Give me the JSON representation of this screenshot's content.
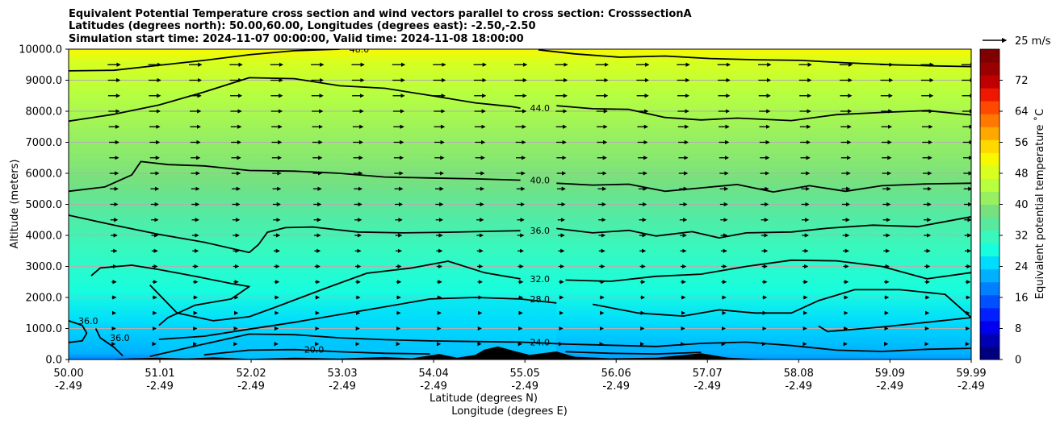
{
  "chart_data": {
    "type": "heatmap",
    "title_lines": [
      "Equivalent Potential Temperature cross section and wind vectors parallel to cross section: CrosssectionA",
      "Latitudes (degrees north): 50.00,60.00, Longitudes (degrees east): -2.50,-2.50",
      "Simulation start time: 2024-11-07 00:00:00, Valid time: 2024-11-08 18:00:00"
    ],
    "xlabel_lines": [
      "Latitude (degrees N)",
      "Longitude (degrees E)"
    ],
    "ylabel": "Altitude (meters)",
    "xlim": [
      50.0,
      59.99
    ],
    "ylim": [
      0,
      10000
    ],
    "x_ticks": [
      {
        "lat": "50.00",
        "lon": "-2.49",
        "v": 50.0
      },
      {
        "lat": "51.01",
        "lon": "-2.49",
        "v": 51.01
      },
      {
        "lat": "52.02",
        "lon": "-2.49",
        "v": 52.02
      },
      {
        "lat": "53.03",
        "lon": "-2.49",
        "v": 53.03
      },
      {
        "lat": "54.04",
        "lon": "-2.49",
        "v": 54.04
      },
      {
        "lat": "55.05",
        "lon": "-2.49",
        "v": 55.05
      },
      {
        "lat": "56.06",
        "lon": "-2.49",
        "v": 56.06
      },
      {
        "lat": "57.07",
        "lon": "-2.49",
        "v": 57.07
      },
      {
        "lat": "58.08",
        "lon": "-2.49",
        "v": 58.08
      },
      {
        "lat": "59.09",
        "lon": "-2.49",
        "v": 59.09
      },
      {
        "lat": "59.99",
        "lon": "-2.49",
        "v": 59.99
      }
    ],
    "y_ticks": [
      {
        "label": "0.0",
        "v": 0
      },
      {
        "label": "1000.0",
        "v": 1000
      },
      {
        "label": "2000.0",
        "v": 2000
      },
      {
        "label": "3000.0",
        "v": 3000
      },
      {
        "label": "4000.0",
        "v": 4000
      },
      {
        "label": "5000.0",
        "v": 5000
      },
      {
        "label": "6000.0",
        "v": 6000
      },
      {
        "label": "7000.0",
        "v": 7000
      },
      {
        "label": "8000.0",
        "v": 8000
      },
      {
        "label": "9000.0",
        "v": 9000
      },
      {
        "label": "10000.0",
        "v": 10000
      }
    ],
    "grid": true,
    "colorbar": {
      "label": "Equivalent potential temperature ˚C",
      "range": [
        0,
        80
      ],
      "ticks": [
        "0",
        "8",
        "16",
        "24",
        "32",
        "40",
        "48",
        "56",
        "64",
        "72"
      ],
      "tick_values": [
        0,
        8,
        16,
        24,
        32,
        40,
        48,
        56,
        64,
        72
      ],
      "colors": [
        "#00007f",
        "#0000b2",
        "#0000ee",
        "#0020ff",
        "#0050ff",
        "#0080ff",
        "#00b0ff",
        "#00dcfd",
        "#18fdde",
        "#38f8be",
        "#58e89e",
        "#78e07e",
        "#98f060",
        "#b8ff3f",
        "#d8ff1f",
        "#f8f800",
        "#ffd800",
        "#ffa800",
        "#ff7800",
        "#ff4800",
        "#ee1800",
        "#c00000",
        "#9a0000",
        "#7f0000"
      ]
    },
    "quiver_key": {
      "label": "25 m/s",
      "speed": 25
    },
    "contours": [
      {
        "level": 48.0,
        "label": "48.0",
        "label_near_lat": 55.05,
        "points": [
          [
            50.0,
            9300
          ],
          [
            50.5,
            9320
          ],
          [
            51.0,
            9480
          ],
          [
            51.5,
            9640
          ],
          [
            52.0,
            9820
          ],
          [
            52.5,
            9950
          ],
          [
            53.0,
            10000
          ]
        ]
      },
      {
        "level": 48.0,
        "label": "48.0",
        "points": [
          [
            55.2,
            9980
          ],
          [
            55.6,
            9850
          ],
          [
            56.1,
            9740
          ],
          [
            56.6,
            9780
          ],
          [
            57.1,
            9700
          ],
          [
            57.6,
            9660
          ],
          [
            58.1,
            9640
          ],
          [
            58.6,
            9560
          ],
          [
            59.1,
            9500
          ],
          [
            59.6,
            9460
          ],
          [
            59.99,
            9440
          ]
        ]
      },
      {
        "level": 44.0,
        "label": "44.0",
        "label_near_lat": 55.05,
        "points": [
          [
            50.0,
            7680
          ],
          [
            50.5,
            7900
          ],
          [
            51.0,
            8200
          ],
          [
            51.5,
            8620
          ],
          [
            52.0,
            9080
          ],
          [
            52.5,
            9050
          ],
          [
            53.0,
            8820
          ],
          [
            53.5,
            8740
          ],
          [
            54.0,
            8510
          ],
          [
            54.5,
            8270
          ],
          [
            54.9,
            8150
          ],
          [
            55.0,
            8100
          ]
        ]
      },
      {
        "level": 44.0,
        "label": "44.0",
        "points": [
          [
            55.4,
            8180
          ],
          [
            55.8,
            8080
          ],
          [
            56.2,
            8060
          ],
          [
            56.6,
            7800
          ],
          [
            57.0,
            7720
          ],
          [
            57.4,
            7780
          ],
          [
            58.0,
            7700
          ],
          [
            58.5,
            7890
          ],
          [
            59.0,
            7960
          ],
          [
            59.5,
            8020
          ],
          [
            59.99,
            7880
          ]
        ]
      },
      {
        "level": 40.0,
        "label": "40.0",
        "label_near_lat": 55.05,
        "points": [
          [
            50.0,
            5420
          ],
          [
            50.4,
            5560
          ],
          [
            50.7,
            5950
          ],
          [
            50.8,
            6380
          ],
          [
            51.1,
            6280
          ],
          [
            51.5,
            6240
          ],
          [
            52.0,
            6090
          ],
          [
            52.5,
            6070
          ],
          [
            53.0,
            6000
          ],
          [
            53.5,
            5880
          ],
          [
            54.0,
            5850
          ],
          [
            54.5,
            5820
          ],
          [
            55.0,
            5780
          ]
        ]
      },
      {
        "level": 40.0,
        "label": "40.0",
        "points": [
          [
            55.4,
            5680
          ],
          [
            55.8,
            5620
          ],
          [
            56.2,
            5650
          ],
          [
            56.6,
            5420
          ],
          [
            57.0,
            5530
          ],
          [
            57.4,
            5640
          ],
          [
            57.8,
            5400
          ],
          [
            58.2,
            5600
          ],
          [
            58.6,
            5420
          ],
          [
            59.0,
            5600
          ],
          [
            59.5,
            5660
          ],
          [
            59.99,
            5680
          ]
        ]
      },
      {
        "level": 36.0,
        "label": "36.0",
        "label_near_lat": 55.05,
        "points": [
          [
            50.0,
            4650
          ],
          [
            50.5,
            4330
          ],
          [
            51.0,
            4030
          ],
          [
            51.5,
            3780
          ],
          [
            52.0,
            3450
          ],
          [
            52.1,
            3700
          ],
          [
            52.2,
            4100
          ],
          [
            52.4,
            4250
          ],
          [
            52.7,
            4270
          ],
          [
            53.2,
            4110
          ],
          [
            53.7,
            4080
          ],
          [
            54.2,
            4100
          ],
          [
            54.8,
            4140
          ],
          [
            55.0,
            4150
          ]
        ]
      },
      {
        "level": 36.0,
        "label": "36.0",
        "points": [
          [
            55.4,
            4220
          ],
          [
            55.8,
            4080
          ],
          [
            56.2,
            4160
          ],
          [
            56.5,
            3980
          ],
          [
            56.9,
            4120
          ],
          [
            57.2,
            3920
          ],
          [
            57.5,
            4080
          ],
          [
            58.0,
            4110
          ],
          [
            58.4,
            4230
          ],
          [
            58.9,
            4330
          ],
          [
            59.4,
            4280
          ],
          [
            59.99,
            4600
          ]
        ]
      },
      {
        "level": 32.0,
        "label": "32.0",
        "label_near_lat": 55.05,
        "points": [
          [
            50.9,
            2400
          ],
          [
            51.2,
            1500
          ],
          [
            51.6,
            1250
          ],
          [
            52.0,
            1380
          ],
          [
            52.3,
            1700
          ],
          [
            52.8,
            2250
          ],
          [
            53.3,
            2780
          ],
          [
            53.8,
            2950
          ],
          [
            54.2,
            3170
          ],
          [
            54.6,
            2800
          ],
          [
            55.0,
            2600
          ]
        ]
      },
      {
        "level": 32.0,
        "label": "32.0",
        "points": [
          [
            55.5,
            2560
          ],
          [
            56.0,
            2520
          ],
          [
            56.5,
            2680
          ],
          [
            57.0,
            2750
          ],
          [
            57.5,
            3000
          ],
          [
            58.0,
            3200
          ],
          [
            58.5,
            3180
          ],
          [
            59.0,
            3000
          ],
          [
            59.5,
            2600
          ],
          [
            59.99,
            2800
          ]
        ]
      },
      {
        "level": 32.0,
        "label": "32.0",
        "points": [
          [
            50.25,
            2700
          ],
          [
            50.35,
            2950
          ],
          [
            50.7,
            3040
          ],
          [
            51.0,
            2900
          ],
          [
            51.4,
            2680
          ],
          [
            51.8,
            2450
          ],
          [
            52.0,
            2350
          ],
          [
            51.8,
            1950
          ],
          [
            51.4,
            1750
          ],
          [
            51.1,
            1350
          ],
          [
            51.0,
            1100
          ]
        ]
      },
      {
        "level": 28.0,
        "label": "28.0",
        "label_near_lat": 55.05,
        "points": [
          [
            51.0,
            650
          ],
          [
            51.5,
            750
          ],
          [
            52.0,
            980
          ],
          [
            52.5,
            1200
          ],
          [
            53.0,
            1450
          ],
          [
            53.5,
            1700
          ],
          [
            54.0,
            1950
          ],
          [
            54.5,
            2000
          ],
          [
            55.0,
            1950
          ],
          [
            55.4,
            1820
          ]
        ]
      },
      {
        "level": 28.0,
        "label": "28.0",
        "points": [
          [
            55.8,
            1780
          ],
          [
            56.3,
            1500
          ],
          [
            56.8,
            1400
          ],
          [
            57.2,
            1600
          ],
          [
            57.6,
            1500
          ],
          [
            58.0,
            1500
          ],
          [
            58.3,
            1900
          ],
          [
            58.7,
            2250
          ],
          [
            59.2,
            2250
          ],
          [
            59.7,
            2100
          ],
          [
            59.99,
            1350
          ],
          [
            59.5,
            1200
          ],
          [
            59.0,
            1050
          ],
          [
            58.4,
            900
          ],
          [
            58.3,
            1080
          ]
        ]
      },
      {
        "level": 24.0,
        "label": "24.0",
        "label_near_lat": 55.05,
        "points": [
          [
            50.9,
            100
          ],
          [
            51.5,
            500
          ],
          [
            52.0,
            820
          ],
          [
            52.5,
            800
          ],
          [
            53.0,
            700
          ],
          [
            53.5,
            640
          ],
          [
            54.0,
            600
          ],
          [
            54.5,
            580
          ],
          [
            55.0,
            560
          ],
          [
            55.5,
            500
          ],
          [
            56.0,
            460
          ],
          [
            56.5,
            420
          ],
          [
            57.0,
            520
          ],
          [
            57.5,
            560
          ],
          [
            58.0,
            450
          ],
          [
            58.5,
            300
          ],
          [
            59.0,
            260
          ],
          [
            59.5,
            330
          ],
          [
            59.99,
            360
          ]
        ]
      },
      {
        "level": 20.0,
        "label": "20.0",
        "label_near_lat": 52.4,
        "points": [
          [
            51.5,
            150
          ],
          [
            52.0,
            300
          ],
          [
            52.5,
            320
          ],
          [
            53.0,
            250
          ],
          [
            53.5,
            200
          ],
          [
            54.0,
            180
          ]
        ]
      },
      {
        "level": 20.0,
        "label": "20.0",
        "points": [
          [
            55.5,
            250
          ],
          [
            56.0,
            200
          ],
          [
            56.5,
            180
          ],
          [
            57.0,
            230
          ]
        ]
      },
      {
        "level": 36.0,
        "label": "36.0",
        "label_near_lat": 50.05,
        "points": [
          [
            50.0,
            1250
          ],
          [
            50.15,
            1100
          ],
          [
            50.2,
            850
          ],
          [
            50.15,
            600
          ],
          [
            50.0,
            550
          ]
        ]
      },
      {
        "level": 36.0,
        "label": "36.0",
        "label_near_lat": 50.4,
        "points": [
          [
            50.3,
            1000
          ],
          [
            50.35,
            700
          ],
          [
            50.5,
            400
          ],
          [
            50.6,
            120
          ]
        ]
      }
    ]
  }
}
